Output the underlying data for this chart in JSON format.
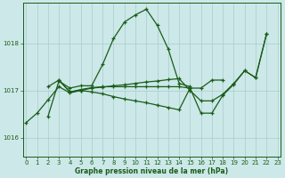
{
  "xlabel": "Graphe pression niveau de la mer (hPa)",
  "xticks": [
    0,
    1,
    2,
    3,
    4,
    5,
    6,
    7,
    8,
    9,
    10,
    11,
    12,
    13,
    14,
    15,
    16,
    17,
    18,
    19,
    20,
    21,
    22,
    23
  ],
  "yticks": [
    1016,
    1017,
    1018
  ],
  "ylim": [
    1015.6,
    1018.85
  ],
  "xlim": [
    -0.3,
    23.3
  ],
  "bg_color": "#cce8e8",
  "grid_color": "#aacccc",
  "line_color": "#1a5c1a",
  "line1_x": [
    2,
    3,
    4,
    5,
    6,
    7,
    8,
    9,
    10,
    11,
    12,
    13,
    14,
    15
  ],
  "line1_y": [
    1016.45,
    1017.2,
    1017.05,
    1017.1,
    1017.1,
    1017.55,
    1018.1,
    1018.45,
    1018.6,
    1018.72,
    1018.38,
    1017.88,
    1017.15,
    1017.08
  ],
  "line2_x": [
    0,
    1,
    2,
    3,
    4,
    5,
    6,
    7,
    8,
    9,
    10,
    11,
    12,
    13,
    14,
    15,
    16,
    17,
    18,
    19,
    20,
    21,
    22
  ],
  "line2_y": [
    1016.32,
    1016.52,
    1016.8,
    1017.08,
    1016.95,
    1017.0,
    1017.05,
    1017.07,
    1017.1,
    1017.12,
    1017.15,
    1017.18,
    1017.2,
    1017.23,
    1017.25,
    1017.0,
    1016.78,
    1016.78,
    1016.92,
    1017.15,
    1017.42,
    1017.27,
    1018.2
  ],
  "line3_x": [
    2,
    3,
    4,
    5,
    6,
    7,
    8,
    9,
    10,
    11,
    12,
    13,
    14,
    15,
    16,
    17,
    18
  ],
  "line3_y": [
    1017.08,
    1017.22,
    1016.97,
    1017.02,
    1017.06,
    1017.08,
    1017.08,
    1017.08,
    1017.08,
    1017.08,
    1017.08,
    1017.08,
    1017.08,
    1017.05,
    1017.05,
    1017.22,
    1017.22
  ],
  "line4_x": [
    3,
    4,
    5,
    6,
    7,
    8,
    9,
    10,
    11,
    12,
    13,
    14,
    15,
    16,
    17,
    18,
    19,
    20,
    21,
    22
  ],
  "line4_y": [
    1017.22,
    1016.97,
    1017.0,
    1016.97,
    1016.93,
    1016.87,
    1016.82,
    1016.78,
    1016.74,
    1016.69,
    1016.64,
    1016.59,
    1017.05,
    1016.52,
    1016.52,
    1016.9,
    1017.13,
    1017.42,
    1017.27,
    1018.2
  ]
}
